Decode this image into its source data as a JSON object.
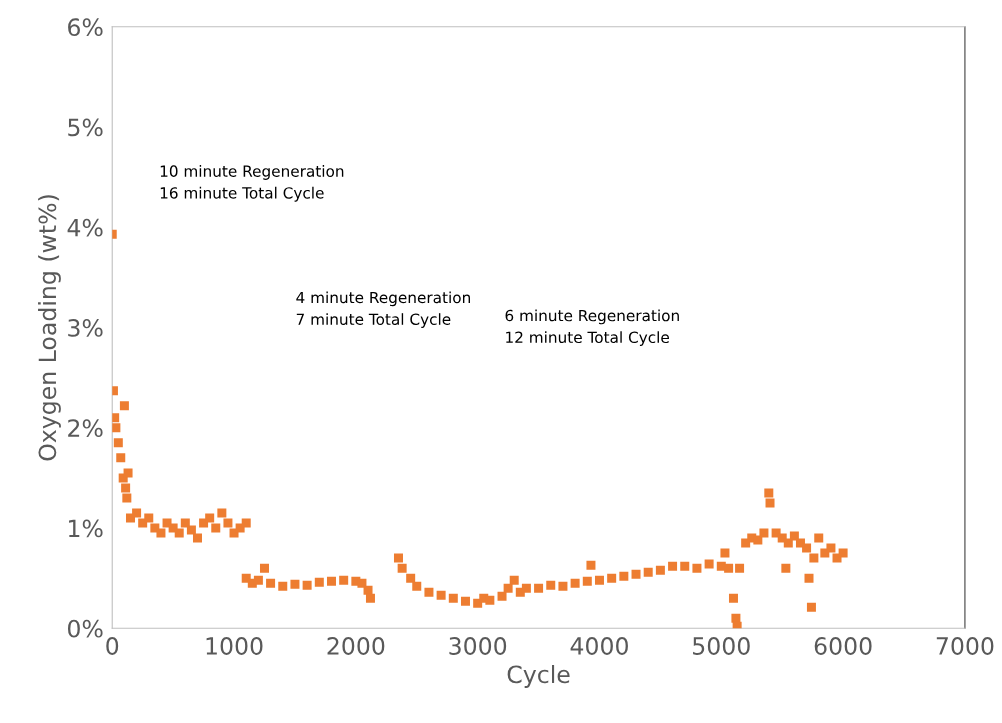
{
  "chart_data": {
    "type": "scatter",
    "xlabel": "Cycle",
    "ylabel": "Oxygen Loading (wt%)",
    "xlim": [
      0,
      7000
    ],
    "xticks": [
      0,
      1000,
      2000,
      3000,
      4000,
      5000,
      6000,
      7000
    ],
    "ylim": [
      0,
      6
    ],
    "yticks": [
      {
        "value": 0,
        "label": "0%"
      },
      {
        "value": 1,
        "label": "1%"
      },
      {
        "value": 2,
        "label": "2%"
      },
      {
        "value": 3,
        "label": "3%"
      },
      {
        "value": 4,
        "label": "4%"
      },
      {
        "value": 5,
        "label": "5%"
      },
      {
        "value": 6,
        "label": "6%"
      }
    ],
    "marker": "square",
    "grid": false,
    "legend": false,
    "annotations": [
      "10 minute Regeneration\n16 minute Total Cycle",
      "4 minute Regeneration\n7 minute Total Cycle",
      "6 minute Regeneration\n12 minute Total Cycle"
    ],
    "series": [
      {
        "color": "#ed7d31",
        "x": [
          0,
          10,
          20,
          30,
          50,
          70,
          90,
          100,
          110,
          120,
          130,
          150,
          200,
          250,
          300,
          350,
          400,
          450,
          500,
          550,
          600,
          650,
          700,
          750,
          800,
          850,
          900,
          950,
          1000,
          1050,
          1100,
          1100,
          1150,
          1200,
          1250,
          1300,
          1400,
          1500,
          1600,
          1700,
          1800,
          1900,
          2000,
          2050,
          2100,
          2120,
          2350,
          2380,
          2450,
          2500,
          2600,
          2700,
          2800,
          2900,
          3000,
          3050,
          3100,
          3200,
          3250,
          3300,
          3350,
          3400,
          3500,
          3600,
          3700,
          3800,
          3900,
          3930,
          4000,
          4100,
          4200,
          4300,
          4400,
          4500,
          4600,
          4700,
          4800,
          4900,
          5000,
          5030,
          5060,
          5100,
          5120,
          5130,
          5150,
          5200,
          5250,
          5300,
          5350,
          5390,
          5400,
          5450,
          5500,
          5530,
          5550,
          5600,
          5650,
          5700,
          5720,
          5740,
          5760,
          5800,
          5850,
          5900,
          5950,
          6000
        ],
        "values": [
          3.93,
          2.37,
          2.1,
          2.0,
          1.85,
          1.7,
          1.5,
          2.22,
          1.4,
          1.3,
          1.55,
          1.1,
          1.15,
          1.05,
          1.1,
          1.0,
          0.95,
          1.05,
          1.0,
          0.95,
          1.05,
          0.98,
          0.9,
          1.05,
          1.1,
          1.0,
          1.15,
          1.05,
          0.95,
          1.0,
          1.05,
          0.5,
          0.45,
          0.48,
          0.6,
          0.45,
          0.42,
          0.44,
          0.43,
          0.46,
          0.47,
          0.48,
          0.47,
          0.45,
          0.38,
          0.3,
          0.7,
          0.6,
          0.5,
          0.42,
          0.36,
          0.33,
          0.3,
          0.27,
          0.25,
          0.3,
          0.28,
          0.32,
          0.4,
          0.48,
          0.36,
          0.4,
          0.4,
          0.43,
          0.42,
          0.45,
          0.47,
          0.63,
          0.48,
          0.5,
          0.52,
          0.54,
          0.56,
          0.58,
          0.62,
          0.62,
          0.6,
          0.64,
          0.62,
          0.75,
          0.6,
          0.3,
          0.1,
          0.02,
          0.6,
          0.85,
          0.9,
          0.88,
          0.95,
          1.35,
          1.25,
          0.95,
          0.9,
          0.6,
          0.85,
          0.92,
          0.85,
          0.8,
          0.5,
          0.21,
          0.7,
          0.9,
          0.75,
          0.8,
          0.7,
          0.75
        ]
      }
    ]
  }
}
